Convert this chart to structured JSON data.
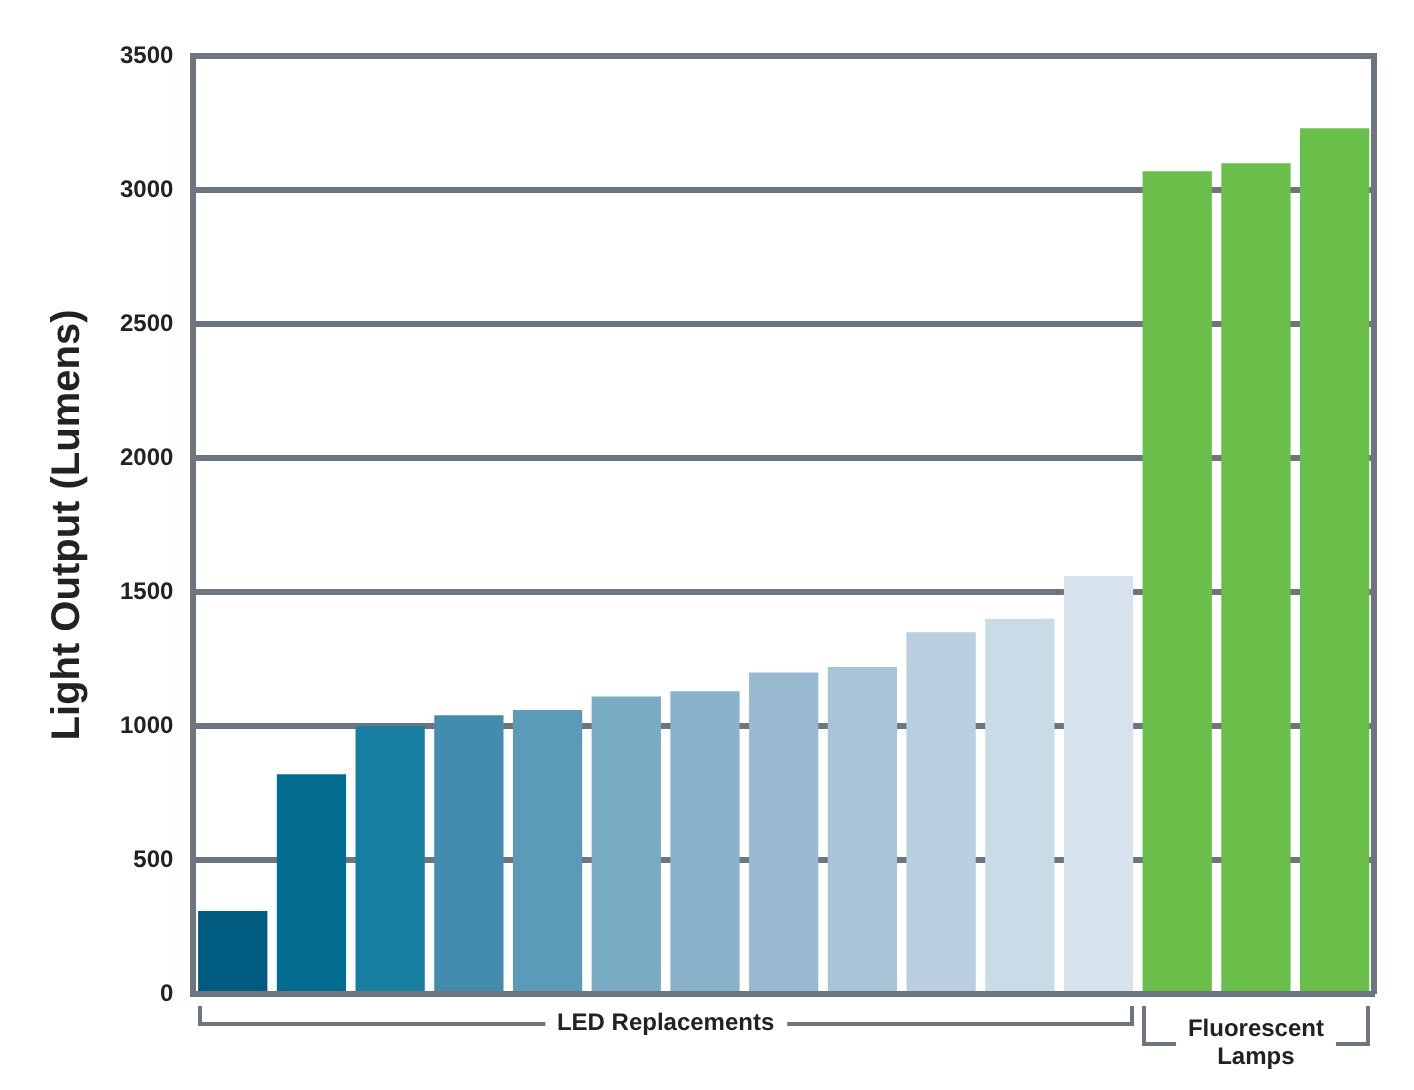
{
  "chart_data": {
    "type": "bar",
    "ylabel": "Light Output (Lumens)",
    "categories": [
      null,
      null,
      null,
      null,
      null,
      null,
      null,
      null,
      null,
      null,
      null,
      null,
      null,
      null,
      null
    ],
    "series": [
      {
        "name": "LED Replacements",
        "colors": [
          "#005b80",
          "#036d91",
          "#167fa1",
          "#438cae",
          "#5c9aba",
          "#79abc4",
          "#8ab2cb",
          "#98b9cf",
          "#a8c5d7",
          "#b9cfdf",
          "#c9dbe6",
          "#d8e4ed",
          null,
          null,
          null
        ],
        "values": [
          310,
          820,
          1000,
          1040,
          1060,
          1110,
          1130,
          1200,
          1220,
          1350,
          1400,
          1560,
          null,
          null,
          null
        ]
      },
      {
        "name": "Fluorescent Lamps",
        "color": "#6abf4b",
        "values": [
          null,
          null,
          null,
          null,
          null,
          null,
          null,
          null,
          null,
          null,
          null,
          null,
          3070,
          3100,
          3230
        ]
      }
    ],
    "ylim": [
      0,
      3500
    ],
    "yticks": [
      0,
      500,
      1000,
      1500,
      2000,
      2500,
      3000,
      3500
    ],
    "grid": "y",
    "legend": false
  }
}
